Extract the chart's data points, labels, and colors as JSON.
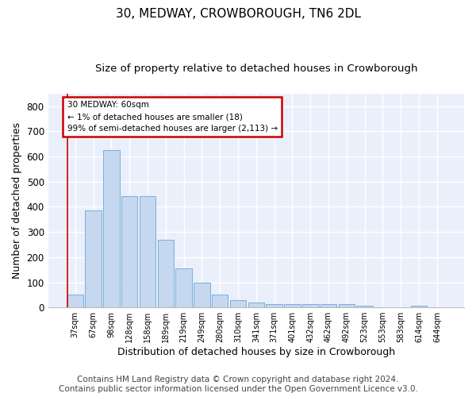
{
  "title": "30, MEDWAY, CROWBOROUGH, TN6 2DL",
  "subtitle": "Size of property relative to detached houses in Crowborough",
  "xlabel": "Distribution of detached houses by size in Crowborough",
  "ylabel": "Number of detached properties",
  "bar_color": "#c5d8f0",
  "bar_edge_color": "#7aafd4",
  "background_color": "#eaf0fb",
  "grid_color": "#ffffff",
  "categories": [
    "37sqm",
    "67sqm",
    "98sqm",
    "128sqm",
    "158sqm",
    "189sqm",
    "219sqm",
    "249sqm",
    "280sqm",
    "310sqm",
    "341sqm",
    "371sqm",
    "401sqm",
    "432sqm",
    "462sqm",
    "492sqm",
    "523sqm",
    "553sqm",
    "583sqm",
    "614sqm",
    "644sqm"
  ],
  "values": [
    50,
    385,
    625,
    442,
    442,
    268,
    155,
    98,
    52,
    30,
    20,
    13,
    13,
    13,
    13,
    13,
    8,
    0,
    0,
    8,
    0
  ],
  "ylim": [
    0,
    850
  ],
  "yticks": [
    0,
    100,
    200,
    300,
    400,
    500,
    600,
    700,
    800
  ],
  "annotation_line1": "30 MEDWAY: 60sqm",
  "annotation_line2": "← 1% of detached houses are smaller (18)",
  "annotation_line3": "99% of semi-detached houses are larger (2,113) →",
  "annotation_box_color": "#ffffff",
  "annotation_box_edge_color": "#cc0000",
  "marker_line_color": "#cc0000",
  "footer_line1": "Contains HM Land Registry data © Crown copyright and database right 2024.",
  "footer_line2": "Contains public sector information licensed under the Open Government Licence v3.0.",
  "title_fontsize": 11,
  "subtitle_fontsize": 9.5,
  "xlabel_fontsize": 9,
  "ylabel_fontsize": 9,
  "footer_fontsize": 7.5
}
